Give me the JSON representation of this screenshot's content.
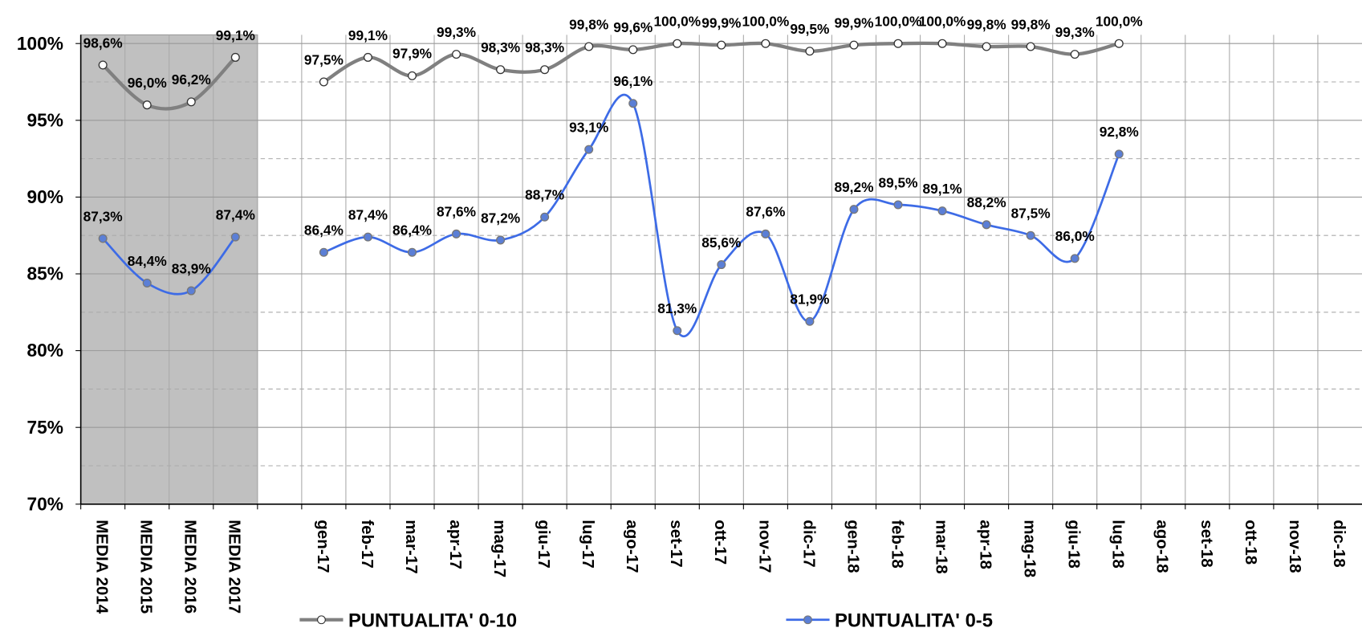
{
  "chart_data": {
    "type": "line",
    "categories": [
      "MEDIA 2014",
      "MEDIA 2015",
      "MEDIA 2016",
      "MEDIA 2017",
      null,
      "gen-17",
      "feb-17",
      "mar-17",
      "apr-17",
      "mag-17",
      "giu-17",
      "lug-17",
      "ago-17",
      "set-17",
      "ott-17",
      "nov-17",
      "dic-17",
      "gen-18",
      "feb-18",
      "mar-18",
      "apr-18",
      "mag-18",
      "giu-18",
      "lug-18",
      "ago-18",
      "set-18",
      "ott-18",
      "nov-18",
      "dic-18"
    ],
    "series": [
      {
        "name": "PUNTUALITA' 0-10",
        "color": "#808080",
        "marker_fill": "#ffffff",
        "values": [
          98.6,
          96.0,
          96.2,
          99.1,
          null,
          97.5,
          99.1,
          97.9,
          99.3,
          98.3,
          98.3,
          99.8,
          99.6,
          100.0,
          99.9,
          100.0,
          99.5,
          99.9,
          100.0,
          100.0,
          99.8,
          99.8,
          99.3,
          100.0,
          null,
          null,
          null,
          null,
          null
        ],
        "value_labels": [
          "98,6%",
          "96,0%",
          "96,2%",
          "99,1%",
          null,
          "97,5%",
          "99,1%",
          "97,9%",
          "99,3%",
          "98,3%",
          "98,3%",
          "99,8%",
          "99,6%",
          "100,0%",
          "99,9%",
          "100,0%",
          "99,5%",
          "99,9%",
          "100,0%",
          "100,0%",
          "99,8%",
          "99,8%",
          "99,3%",
          "100,0%",
          null,
          null,
          null,
          null,
          null
        ]
      },
      {
        "name": "PUNTUALITA' 0-5",
        "color": "#3d6be6",
        "marker_fill": "#5b7fd6",
        "values": [
          87.3,
          84.4,
          83.9,
          87.4,
          null,
          86.4,
          87.4,
          86.4,
          87.6,
          87.2,
          88.7,
          93.1,
          96.1,
          81.3,
          85.6,
          87.6,
          81.9,
          89.2,
          89.5,
          89.1,
          88.2,
          87.5,
          86.0,
          92.8,
          null,
          null,
          null,
          null,
          null
        ],
        "value_labels": [
          "87,3%",
          "84,4%",
          "83,9%",
          "87,4%",
          null,
          "86,4%",
          "87,4%",
          "86,4%",
          "87,6%",
          "87,2%",
          "88,7%",
          "93,1%",
          "96,1%",
          "81,3%",
          "85,6%",
          "87,6%",
          "81,9%",
          "89,2%",
          "89,5%",
          "89,1%",
          "88,2%",
          "87,5%",
          "86,0%",
          "92,8%",
          null,
          null,
          null,
          null,
          null
        ]
      }
    ],
    "ylim": [
      70,
      100
    ],
    "yticks": [
      {
        "value": 70,
        "label": "70%"
      },
      {
        "value": 75,
        "label": "75%"
      },
      {
        "value": 80,
        "label": "80%"
      },
      {
        "value": 85,
        "label": "85%"
      },
      {
        "value": 90,
        "label": "90%"
      },
      {
        "value": 95,
        "label": "95%"
      },
      {
        "value": 100,
        "label": "100%"
      }
    ],
    "yminorticks": [
      72.5,
      77.5,
      82.5,
      87.5,
      92.5,
      97.5
    ],
    "grid": true,
    "smooth": true,
    "shade": {
      "count": 4,
      "color": "#c0c0c0"
    },
    "legend": "bottom"
  }
}
